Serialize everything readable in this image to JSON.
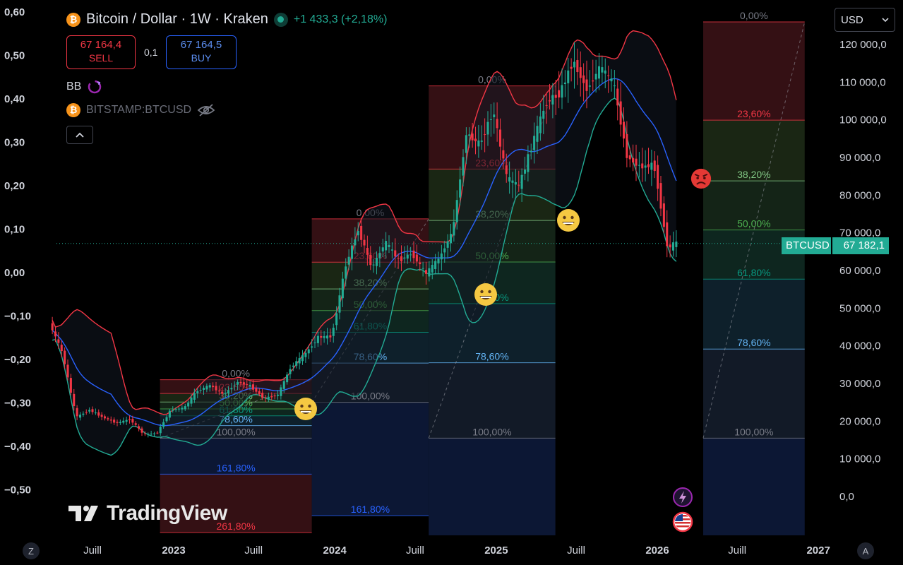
{
  "header": {
    "coin_symbol": "₿",
    "title": "Bitcoin / Dollar · 1W · Kraken",
    "change": "+1 433,3 (+2,18%)",
    "sell_price": "67 164,4",
    "sell_label": "SELL",
    "spread": "0,1",
    "buy_price": "67 164,5",
    "buy_label": "BUY",
    "indicator_label": "BB",
    "compare_symbol": "BITSTAMP:BTCUSD",
    "currency": "USD"
  },
  "price_badge": {
    "symbol": "BTCUSD",
    "price": "67 182,1"
  },
  "watermark": {
    "text": "TradingView"
  },
  "corners": {
    "left": "Z",
    "right": "A"
  },
  "colors": {
    "up": "#22ab94",
    "down": "#f23645",
    "upper_band": "#f23645",
    "lower_band": "#22ab94",
    "basis": "#2962ff",
    "fib_236": "#f23645",
    "fib_382": "#81c784",
    "fib_50": "#4caf50",
    "fib_618": "#089981",
    "fib_786": "#64b5f6",
    "fib_100": "#787b86",
    "fib_1618": "#2962ff",
    "fib_2618": "#f23645"
  },
  "chart_data": {
    "type": "candlestick",
    "interval": "1W",
    "x_labels": [
      "Juill",
      "2023",
      "Juill",
      "2024",
      "Juill",
      "2025",
      "Juill",
      "2026",
      "Juill",
      "2027"
    ],
    "x_label_dates": [
      "2022-07-01",
      "2023-01-01",
      "2023-07-01",
      "2024-01-01",
      "2024-07-01",
      "2025-01-01",
      "2025-07-01",
      "2026-01-01",
      "2026-07-01",
      "2027-01-01"
    ],
    "right_axis": {
      "ticks": [
        0,
        10000,
        20000,
        30000,
        40000,
        50000,
        60000,
        70000,
        80000,
        90000,
        100000,
        110000,
        120000
      ],
      "tick_labels": [
        "0,0",
        "10 000,0",
        "20 000,0",
        "30 000,0",
        "40 000,0",
        "50 000,0",
        "60 000,0",
        "70 000,0",
        "80 000,0",
        "90 000,0",
        "100 000,0",
        "110 000,0",
        "120 000,0"
      ]
    },
    "left_axis": {
      "ticks": [
        0.6,
        0.5,
        0.4,
        0.3,
        0.2,
        0.1,
        0,
        -0.1,
        -0.2,
        -0.3,
        -0.4,
        -0.5
      ],
      "tick_labels": [
        "0,60",
        "0,50",
        "0,40",
        "0,30",
        "0,20",
        "0,10",
        "0,00",
        "−0,10",
        "−0,20",
        "−0,30",
        "−0,40",
        "−0,50"
      ]
    },
    "last_price": 67182.1,
    "price_path": [
      [
        "2022-04-01",
        46000
      ],
      [
        "2022-05-01",
        38000
      ],
      [
        "2022-06-01",
        21000
      ],
      [
        "2022-07-01",
        23000
      ],
      [
        "2022-08-01",
        21000
      ],
      [
        "2022-09-01",
        19500
      ],
      [
        "2022-10-01",
        20500
      ],
      [
        "2022-11-01",
        16500
      ],
      [
        "2022-12-01",
        16800
      ],
      [
        "2023-01-01",
        23000
      ],
      [
        "2023-02-01",
        23500
      ],
      [
        "2023-03-01",
        28000
      ],
      [
        "2023-04-01",
        29500
      ],
      [
        "2023-05-01",
        27000
      ],
      [
        "2023-06-01",
        30400
      ],
      [
        "2023-07-01",
        29300
      ],
      [
        "2023-08-01",
        26000
      ],
      [
        "2023-09-01",
        27000
      ],
      [
        "2023-10-01",
        34500
      ],
      [
        "2023-11-01",
        37700
      ],
      [
        "2023-12-01",
        42300
      ],
      [
        "2024-01-01",
        42500
      ],
      [
        "2024-02-01",
        61000
      ],
      [
        "2024-03-01",
        71000
      ],
      [
        "2024-04-01",
        60600
      ],
      [
        "2024-05-01",
        67500
      ],
      [
        "2024-06-01",
        62700
      ],
      [
        "2024-07-01",
        64600
      ],
      [
        "2024-08-01",
        59000
      ],
      [
        "2024-09-01",
        63300
      ],
      [
        "2024-10-01",
        70300
      ],
      [
        "2024-11-01",
        96400
      ],
      [
        "2024-12-01",
        93400
      ],
      [
        "2025-01-01",
        102400
      ],
      [
        "2025-02-01",
        84300
      ],
      [
        "2025-03-01",
        82500
      ],
      [
        "2025-04-01",
        94200
      ],
      [
        "2025-05-01",
        104600
      ],
      [
        "2025-06-01",
        107100
      ],
      [
        "2025-07-01",
        115700
      ],
      [
        "2025-08-01",
        108200
      ],
      [
        "2025-09-01",
        114000
      ],
      [
        "2025-10-01",
        109500
      ],
      [
        "2025-11-01",
        90000
      ],
      [
        "2025-12-01",
        87500
      ],
      [
        "2026-01-01",
        88000
      ],
      [
        "2026-02-01",
        65500
      ],
      [
        "2026-02-15",
        67182
      ]
    ],
    "bollinger": {
      "upper": "red",
      "basis": "blue",
      "lower": "green"
    },
    "fib_retracements": [
      {
        "start": "2022-12-01",
        "end": "2023-11-10",
        "high": 31000,
        "low": 15500,
        "labels": [
          "0,00%",
          "23,60%",
          "38,20%",
          "50,00%",
          "61,80%",
          "78,60%",
          "100,00%",
          "161,80%",
          "261,80%"
        ]
      },
      {
        "start": "2023-11-10",
        "end": "2024-08-01",
        "high": 73700,
        "low": 25000,
        "labels": [
          "0,00%",
          "23,60%",
          "38,20%",
          "50,00%",
          "61,80%",
          "78,60%",
          "100,00%",
          "161,80%"
        ]
      },
      {
        "start": "2024-08-01",
        "end": "2025-05-15",
        "high": 109000,
        "low": 15500,
        "labels": [
          "0,00%",
          "23,60%",
          "38,20%",
          "50,00%",
          "61,80%",
          "78,60%",
          "100,00%"
        ]
      },
      {
        "start": "2026-04-15",
        "end": "2026-12-01",
        "high": 126000,
        "low": 15500,
        "labels": [
          "0,00%",
          "23,60%",
          "38,20%",
          "50,00%",
          "61,80%",
          "78,60%",
          "100,00%"
        ]
      }
    ],
    "annotations": [
      {
        "icon": "grin-emoji",
        "date": "2023-10-20",
        "price": 24000
      },
      {
        "icon": "grin-emoji",
        "date": "2024-09-01",
        "price": 52000
      },
      {
        "icon": "grin-emoji",
        "date": "2025-04-01",
        "price": 75000
      },
      {
        "icon": "angry-emoji",
        "date": "2026-02-20",
        "price": 83000
      }
    ]
  }
}
